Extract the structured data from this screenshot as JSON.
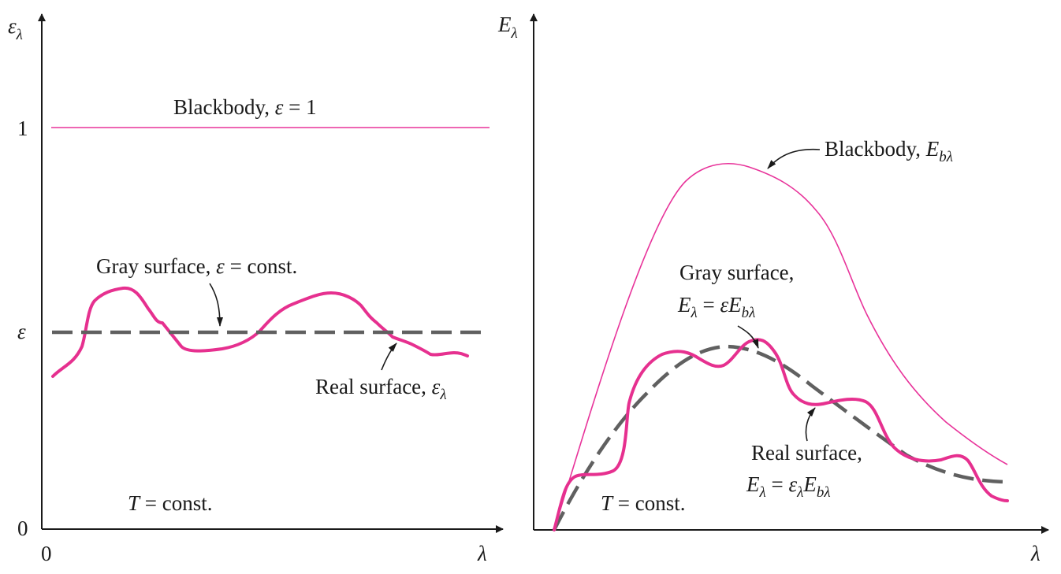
{
  "colors": {
    "blackbody": "#e8339a",
    "real_surface": "#e6308f",
    "gray_surface": "#606060",
    "axis": "#1a1a1a"
  },
  "left_panel": {
    "y_axis_symbol": "ε",
    "y_axis_subscript": "λ",
    "x_axis_symbol": "λ",
    "tick_one": "1",
    "tick_eps": "ε",
    "tick_zero_y": "0",
    "tick_zero_x": "0",
    "blackbody_label_text": "Blackbody, ",
    "blackbody_label_eps": "ε",
    "blackbody_label_value": " = 1",
    "gray_label_text": "Gray surface, ",
    "gray_label_eps": "ε",
    "gray_label_value": " = const.",
    "real_label_text": "Real surface, ",
    "real_label_eps": "ε",
    "real_label_sub": "λ",
    "temp_label_T": "T",
    "temp_label_value": " = const."
  },
  "right_panel": {
    "y_axis_symbol": "E",
    "y_axis_subscript": "λ",
    "x_axis_symbol": "λ",
    "blackbody_label_text": "Blackbody, ",
    "blackbody_label_E": "E",
    "blackbody_label_sub": "bλ",
    "gray_label_line1": "Gray surface,",
    "gray_eq_E": "E",
    "gray_eq_sub1": "λ",
    "gray_eq_mid": " = ",
    "gray_eq_eps": "εE",
    "gray_eq_sub2": "bλ",
    "real_label_line1": "Real surface,",
    "real_eq_E": "E",
    "real_eq_sub1": "λ",
    "real_eq_mid": " = ",
    "real_eq_eps": "ε",
    "real_eq_sub2": "λ",
    "real_eq_E2": "E",
    "real_eq_sub3": "bλ",
    "temp_label_T": "T",
    "temp_label_value": " = const."
  }
}
